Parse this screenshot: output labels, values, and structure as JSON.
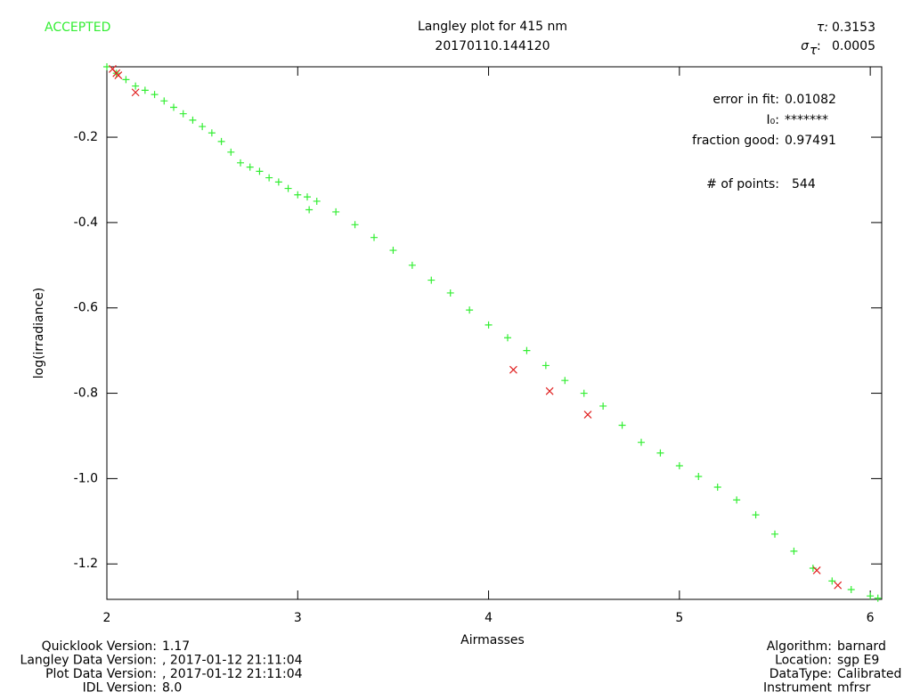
{
  "status": "ACCEPTED",
  "chart_data": {
    "type": "scatter",
    "title": "Langley plot for 415 nm",
    "subtitle": "20170110.144120",
    "tau_label": "τ:",
    "tau": "0.3153",
    "sigma_label": "σ",
    "sigma_sub": "τ",
    "sigma_colon": ":",
    "sigma": "0.0005",
    "xlabel": "Airmasses",
    "ylabel": "log(irradiance)",
    "xlim": [
      2,
      6.06
    ],
    "ylim": [
      -1.283,
      -0.035
    ],
    "xticks": [
      2,
      3,
      4,
      5,
      6
    ],
    "yticks": [
      -0.2,
      -0.4,
      -0.6,
      -0.8,
      {
        "value": -1.0,
        "label": "-1.0"
      },
      -1.2
    ],
    "stats": [
      {
        "label": "error in fit:",
        "value": "0.01082"
      },
      {
        "label": "I₀:",
        "value": "*******"
      },
      {
        "label": "fraction good:",
        "value": "0.97491"
      },
      {
        "label": "# of points:",
        "value": "544"
      }
    ],
    "series": [
      {
        "name": "good",
        "color": "#33ee33",
        "marker": "plus",
        "x": [
          2.0,
          2.05,
          2.1,
          2.15,
          2.2,
          2.25,
          2.3,
          2.35,
          2.4,
          2.45,
          2.5,
          2.55,
          2.6,
          2.65,
          2.7,
          2.75,
          2.8,
          2.85,
          2.9,
          2.95,
          3.0,
          3.05,
          3.06,
          3.1,
          3.2,
          3.3,
          3.4,
          3.5,
          3.6,
          3.7,
          3.8,
          3.9,
          4.0,
          4.1,
          4.2,
          4.3,
          4.4,
          4.5,
          4.6,
          4.7,
          4.8,
          4.9,
          5.0,
          5.1,
          5.2,
          5.3,
          5.4,
          5.5,
          5.6,
          5.7,
          5.8,
          5.9,
          6.0,
          6.04
        ],
        "values": [
          -0.035,
          -0.05,
          -0.065,
          -0.08,
          -0.09,
          -0.1,
          -0.115,
          -0.13,
          -0.145,
          -0.16,
          -0.175,
          -0.19,
          -0.21,
          -0.235,
          -0.26,
          -0.27,
          -0.28,
          -0.295,
          -0.305,
          -0.32,
          -0.335,
          -0.34,
          -0.37,
          -0.35,
          -0.375,
          -0.405,
          -0.435,
          -0.465,
          -0.5,
          -0.535,
          -0.565,
          -0.605,
          -0.64,
          -0.67,
          -0.7,
          -0.735,
          -0.77,
          -0.8,
          -0.83,
          -0.875,
          -0.915,
          -0.94,
          -0.97,
          -0.995,
          -1.02,
          -1.05,
          -1.085,
          -1.13,
          -1.17,
          -1.21,
          -1.24,
          -1.26,
          -1.275,
          -1.28
        ]
      },
      {
        "name": "rejected",
        "color": "#e02020",
        "marker": "cross",
        "x": [
          2.03,
          2.05,
          2.06,
          2.15,
          4.13,
          4.32,
          4.52,
          5.72,
          5.83
        ],
        "values": [
          -0.04,
          -0.05,
          -0.055,
          -0.095,
          -0.745,
          -0.795,
          -0.85,
          -1.215,
          -1.25
        ]
      }
    ]
  },
  "footer_left": [
    {
      "label": "Quicklook Version:",
      "value": "1.17"
    },
    {
      "label": "Langley Data Version:",
      "value": ", 2017-01-12 21:11:04"
    },
    {
      "label": "Plot Data Version:",
      "value": ", 2017-01-12 21:11:04"
    },
    {
      "label": "IDL Version:",
      "value": "8.0"
    }
  ],
  "footer_right": [
    {
      "label": "Algorithm:",
      "value": "barnard"
    },
    {
      "label": "Location:",
      "value": "sgp E9"
    },
    {
      "label": "DataType:",
      "value": "Calibrated"
    },
    {
      "label": "Instrument",
      "value": "mfrsr"
    }
  ]
}
